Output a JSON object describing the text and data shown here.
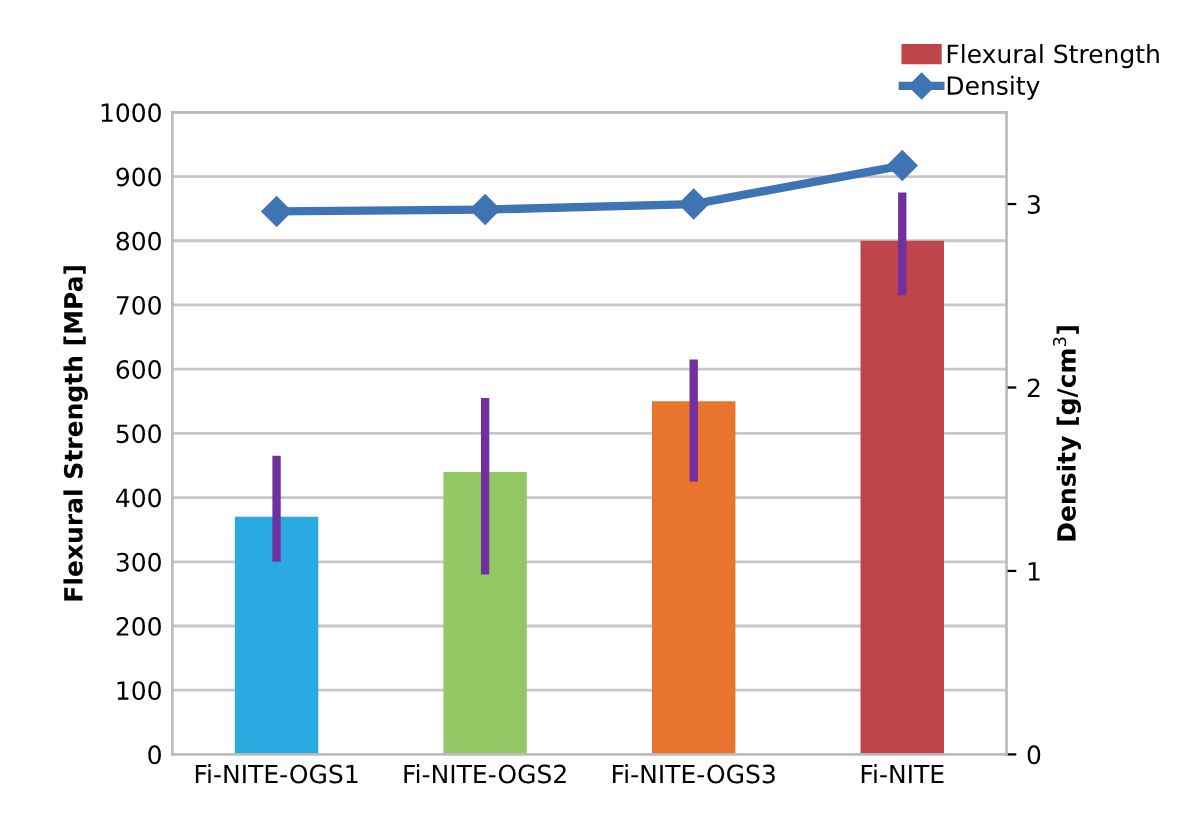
{
  "chart_data": {
    "type": "bar",
    "categories": [
      "Fi-NITE-OGS1",
      "Fi-NITE-OGS2",
      "Fi-NITE-OGS3",
      "Fi-NITE"
    ],
    "series": [
      {
        "name": "Flexural Strength",
        "color": "#c0454a",
        "colors": [
          "#29abe2",
          "#92c864",
          "#e8742e",
          "#c0454a"
        ],
        "values": [
          370,
          440,
          550,
          800
        ],
        "errors": [
          [
            300,
            465
          ],
          [
            280,
            555
          ],
          [
            425,
            615
          ],
          [
            715,
            875
          ]
        ]
      },
      {
        "name": "Density",
        "type": "line",
        "axis": "y2",
        "color": "#3f74b4",
        "values": [
          2.96,
          2.97,
          3.0,
          3.21
        ],
        "marker": "diamond"
      }
    ],
    "ylabel": "Flexural Strength [MPa]",
    "y2label": "Density [g/cm$^{3}$]",
    "ylim": [
      0,
      1000
    ],
    "yticks": [
      0,
      100,
      200,
      300,
      400,
      500,
      600,
      700,
      800,
      900,
      1000
    ],
    "y2lim": [
      0,
      3.5
    ],
    "y2ticks": [
      0,
      1,
      2,
      3
    ],
    "grid": "y",
    "legend": "top right"
  }
}
